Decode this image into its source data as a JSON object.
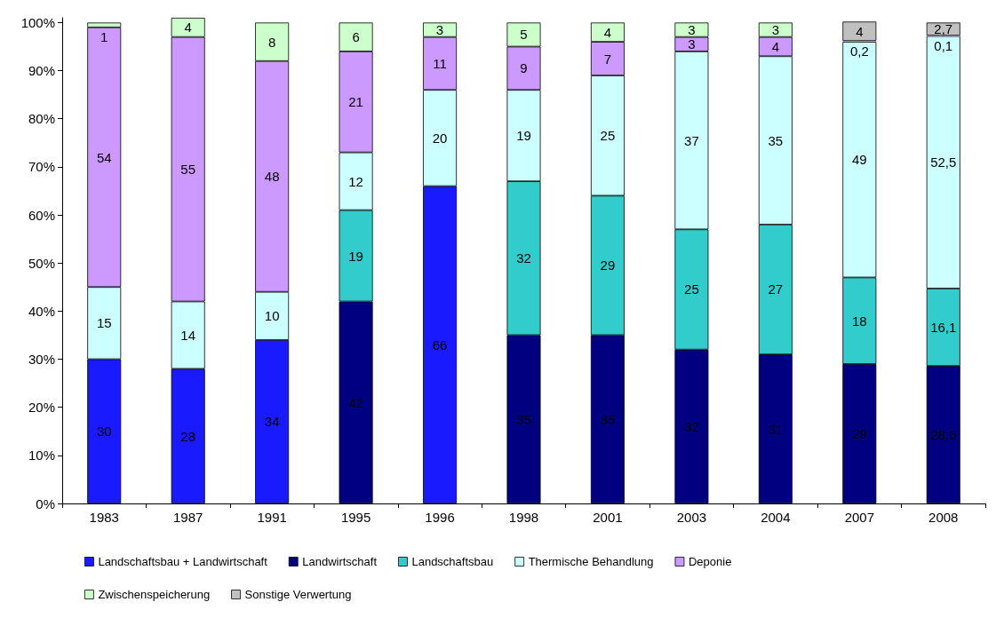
{
  "chart_data": {
    "type": "bar",
    "stacked": true,
    "categories": [
      "1983",
      "1987",
      "1991",
      "1995",
      "1996",
      "1998",
      "2001",
      "2003",
      "2004",
      "2007",
      "2008"
    ],
    "series": [
      {
        "name": "Landschaftsbau + Landwirtschaft",
        "color": "#1a1aff",
        "values": [
          30,
          28,
          34,
          null,
          66,
          null,
          null,
          null,
          null,
          null,
          null
        ],
        "value_labels": [
          "30",
          "28",
          "34",
          null,
          "66",
          null,
          null,
          null,
          null,
          null,
          null
        ]
      },
      {
        "name": "Landwirtschaft",
        "color": "#000080",
        "values": [
          null,
          null,
          null,
          42,
          null,
          35,
          35,
          32,
          31,
          29,
          28.6
        ],
        "value_labels": [
          null,
          null,
          null,
          "42",
          null,
          "35",
          "35",
          "32",
          "31",
          "29",
          "28,6"
        ]
      },
      {
        "name": "Landschaftsbau",
        "color": "#33cccc",
        "values": [
          null,
          null,
          null,
          19,
          null,
          32,
          29,
          25,
          27,
          18,
          16.1
        ],
        "value_labels": [
          null,
          null,
          null,
          "19",
          null,
          "32",
          "29",
          "25",
          "27",
          "18",
          "16,1"
        ]
      },
      {
        "name": "Thermische Behandlung",
        "color": "#ccffff",
        "values": [
          15,
          14,
          10,
          12,
          20,
          19,
          25,
          37,
          35,
          49,
          52.5
        ],
        "value_labels": [
          "15",
          "14",
          "10",
          "12",
          "20",
          "19",
          "25",
          "37",
          "35",
          "49",
          "52,5"
        ]
      },
      {
        "name": "Deponie",
        "color": "#cc99ff",
        "values": [
          54,
          55,
          48,
          21,
          11,
          9,
          7,
          3,
          4,
          0.2,
          0.1
        ],
        "value_labels": [
          "54",
          "55",
          "48",
          "21",
          "11",
          "9",
          "7",
          "3",
          "4",
          "0,2",
          "0,1"
        ]
      },
      {
        "name": "Zwischenspeicherung",
        "color": "#ccffcc",
        "values": [
          1,
          4,
          8,
          6,
          3,
          5,
          4,
          3,
          3,
          null,
          null
        ],
        "value_labels": [
          "1",
          "4",
          "8",
          "6",
          "3",
          "5",
          "4",
          "3",
          "3",
          null,
          null
        ]
      },
      {
        "name": "Sonstige Verwertung",
        "color": "#c0c0c0",
        "values": [
          null,
          null,
          null,
          null,
          null,
          null,
          null,
          null,
          null,
          4,
          2.7
        ],
        "value_labels": [
          null,
          null,
          null,
          null,
          null,
          null,
          null,
          null,
          null,
          "4",
          "2,7"
        ]
      }
    ],
    "ylim": [
      0,
      101
    ],
    "yticks": [
      {
        "value": 0,
        "label": "0%"
      },
      {
        "value": 10,
        "label": "10%"
      },
      {
        "value": 20,
        "label": "20%"
      },
      {
        "value": 30,
        "label": "30%"
      },
      {
        "value": 40,
        "label": "40%"
      },
      {
        "value": 50,
        "label": "50%"
      },
      {
        "value": 60,
        "label": "60%"
      },
      {
        "value": 70,
        "label": "70%"
      },
      {
        "value": 80,
        "label": "80%"
      },
      {
        "value": 90,
        "label": "90%"
      },
      {
        "value": 100,
        "label": "100%"
      }
    ],
    "grid": false,
    "legend": "bottom"
  }
}
